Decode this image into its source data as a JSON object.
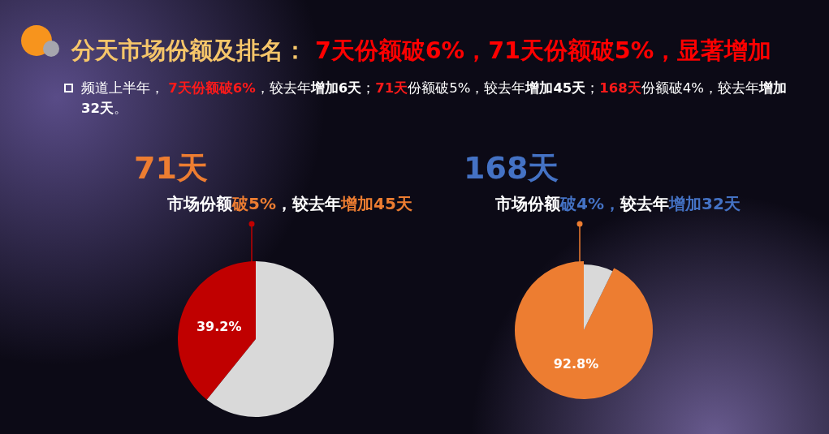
{
  "chart_data": [
    {
      "type": "other",
      "title": "分天市场份额及排名： 7天份额破6%，71天份额破5%，显著增加",
      "subtitle": "频道上半年， **7天份额破6%**，较去年**增加6天**；**71天**份额破5%，较去年**增加45天**；**168天**份额破4%，较去年**增加32天**。"
    },
    {
      "type": "pie",
      "title": "71天",
      "subtitle": "市场份额**破5%**，较去年**增加45天**",
      "categories": [
        null,
        null
      ],
      "values": [
        39.2,
        60.8
      ],
      "colors": [
        "#c00000",
        "#d9d9d9"
      ],
      "value_labels": [
        "39.2%",
        null
      ]
    },
    {
      "type": "pie",
      "title": "168天",
      "subtitle": "市场份额**破4%，**较去年**增加32天**",
      "categories": [
        null,
        null
      ],
      "values": [
        92.8,
        7.2
      ],
      "colors": [
        "#ed7d31",
        "#d9d9d9"
      ],
      "value_labels": [
        "92.8%",
        null
      ]
    }
  ]
}
